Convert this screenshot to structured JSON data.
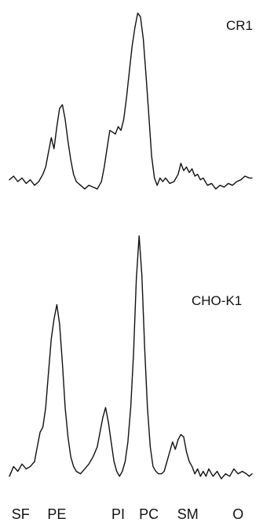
{
  "chart_data": [
    {
      "type": "line",
      "title": "CR1",
      "xlabel": "",
      "ylabel": "",
      "categories": [
        "SF",
        "PE",
        "PI",
        "PC",
        "SM",
        "O"
      ],
      "x_positions": [
        1.0,
        2.3,
        4.5,
        5.6,
        7.0,
        8.8
      ],
      "xlim": [
        0.6,
        9.3
      ],
      "ylim": [
        0,
        100
      ],
      "grid": false,
      "series": [
        {
          "x": [
            0.6,
            0.75,
            0.9,
            1.05,
            1.2,
            1.35,
            1.5,
            1.65,
            1.8,
            1.9,
            2.0,
            2.1,
            2.2,
            2.3,
            2.4,
            2.5,
            2.6,
            2.7,
            2.8,
            2.9,
            3.0,
            3.15,
            3.3,
            3.45,
            3.6,
            3.75,
            3.9,
            4.0,
            4.1,
            4.2,
            4.3,
            4.4,
            4.5,
            4.6,
            4.7,
            4.8,
            4.9,
            5.0,
            5.1,
            5.2,
            5.3,
            5.4,
            5.5,
            5.6,
            5.7,
            5.8,
            5.9,
            6.0,
            6.1,
            6.2,
            6.35,
            6.5,
            6.65,
            6.75,
            6.85,
            6.95,
            7.05,
            7.15,
            7.25,
            7.35,
            7.45,
            7.55,
            7.7,
            7.85,
            8.0,
            8.15,
            8.3,
            8.45,
            8.6,
            8.75,
            8.9,
            9.05,
            9.2,
            9.3
          ],
          "values": [
            7,
            9,
            6,
            8,
            5,
            7,
            4,
            6,
            10,
            14,
            22,
            30,
            24,
            36,
            46,
            48,
            40,
            28,
            18,
            10,
            6,
            4,
            2,
            4,
            3,
            2,
            6,
            14,
            24,
            34,
            33,
            32,
            36,
            34,
            40,
            52,
            66,
            80,
            90,
            98,
            96,
            84,
            64,
            42,
            20,
            8,
            4,
            8,
            6,
            8,
            5,
            6,
            10,
            16,
            12,
            14,
            11,
            13,
            9,
            10,
            7,
            8,
            4,
            5,
            2,
            4,
            3,
            5,
            4,
            6,
            7,
            9,
            8,
            8
          ]
        }
      ]
    },
    {
      "type": "line",
      "title": "CHO-K1",
      "xlabel": "",
      "ylabel": "",
      "categories": [
        "SF",
        "PE",
        "PI",
        "PC",
        "SM",
        "O"
      ],
      "x_positions": [
        1.0,
        2.3,
        4.5,
        5.6,
        7.0,
        8.8
      ],
      "xlim": [
        0.6,
        9.3
      ],
      "ylim": [
        0,
        100
      ],
      "grid": false,
      "series": [
        {
          "x": [
            0.6,
            0.75,
            0.9,
            1.05,
            1.2,
            1.35,
            1.5,
            1.6,
            1.7,
            1.8,
            1.9,
            2.0,
            2.1,
            2.2,
            2.3,
            2.4,
            2.5,
            2.6,
            2.7,
            2.8,
            2.9,
            3.0,
            3.15,
            3.3,
            3.45,
            3.6,
            3.75,
            3.85,
            3.95,
            4.05,
            4.15,
            4.25,
            4.35,
            4.45,
            4.55,
            4.65,
            4.75,
            4.85,
            4.95,
            5.05,
            5.15,
            5.25,
            5.35,
            5.45,
            5.55,
            5.65,
            5.75,
            5.85,
            5.95,
            6.05,
            6.15,
            6.25,
            6.35,
            6.45,
            6.55,
            6.65,
            6.75,
            6.85,
            6.95,
            7.05,
            7.15,
            7.25,
            7.35,
            7.45,
            7.55,
            7.65,
            7.75,
            7.9,
            8.05,
            8.2,
            8.35,
            8.5,
            8.65,
            8.8,
            8.95,
            9.1,
            9.2,
            9.3
          ],
          "values": [
            2,
            6,
            4,
            7,
            5,
            6,
            8,
            14,
            20,
            22,
            30,
            44,
            58,
            66,
            72,
            64,
            48,
            30,
            18,
            10,
            6,
            4,
            3,
            5,
            7,
            10,
            14,
            20,
            26,
            30,
            24,
            16,
            8,
            4,
            2,
            4,
            8,
            16,
            30,
            52,
            82,
            100,
            84,
            54,
            30,
            14,
            6,
            4,
            3,
            3,
            4,
            8,
            12,
            16,
            13,
            17,
            19,
            18,
            12,
            8,
            6,
            3,
            5,
            2,
            4,
            2,
            5,
            2,
            4,
            1,
            3,
            2,
            5,
            3,
            4,
            3,
            2,
            3
          ]
        }
      ]
    }
  ]
}
